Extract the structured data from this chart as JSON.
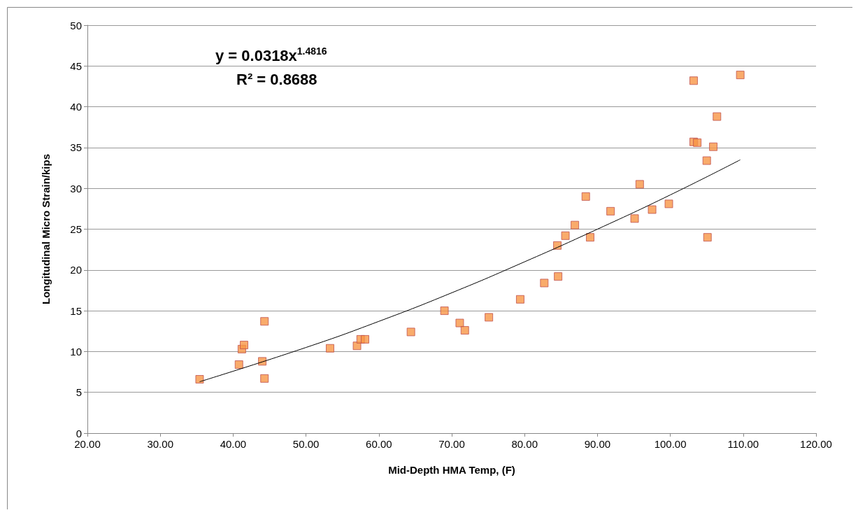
{
  "chart_data": {
    "type": "scatter",
    "xlabel": "Mid-Depth HMA Temp, (F)",
    "ylabel": "Longitudinal Micro Strain/kips",
    "annotations": [
      "y = 0.0318x$^{1.4816}$",
      "R² = 0.8688"
    ],
    "xlim": [
      20,
      120
    ],
    "xticks": [
      {
        "value": 20,
        "label": "20.00"
      },
      {
        "value": 30,
        "label": "30.00"
      },
      {
        "value": 40,
        "label": "40.00"
      },
      {
        "value": 50,
        "label": "50.00"
      },
      {
        "value": 60,
        "label": "60.00"
      },
      {
        "value": 70,
        "label": "70.00"
      },
      {
        "value": 80,
        "label": "80.00"
      },
      {
        "value": 90,
        "label": "90.00"
      },
      {
        "value": 100,
        "label": "100.00"
      },
      {
        "value": 110,
        "label": "110.00"
      },
      {
        "value": 120,
        "label": "120.00"
      }
    ],
    "ylim": [
      0,
      50
    ],
    "yticks": [
      0,
      5,
      10,
      15,
      20,
      25,
      30,
      35,
      40,
      45,
      50
    ],
    "grid": "y",
    "series": [
      {
        "color": "#f79646",
        "marker": "square",
        "x": [
          35.4,
          40.8,
          41.2,
          41.5,
          44.0,
          44.3,
          44.3,
          53.3,
          57.0,
          57.5,
          58.1,
          64.4,
          69.0,
          71.1,
          71.8,
          75.1,
          79.4,
          82.7,
          84.5,
          84.6,
          85.6,
          86.9,
          88.4,
          89.0,
          91.8,
          95.1,
          95.8,
          97.5,
          99.8,
          103.2,
          103.2,
          103.7,
          105.0,
          105.1,
          105.9,
          106.4,
          109.6
        ],
        "values": [
          6.6,
          8.4,
          10.3,
          10.8,
          8.8,
          13.7,
          6.7,
          10.4,
          10.7,
          11.5,
          11.5,
          12.4,
          15.0,
          13.5,
          12.6,
          14.2,
          16.4,
          18.4,
          23.0,
          19.2,
          24.2,
          25.5,
          29.0,
          24.0,
          27.2,
          26.3,
          30.5,
          27.4,
          28.1,
          43.2,
          35.7,
          35.6,
          33.4,
          24.0,
          35.1,
          38.8,
          43.9
        ]
      },
      {
        "type": "line",
        "color": "#000000",
        "marker": "none",
        "line_style": "solid",
        "x": [
          35.4,
          50,
          60,
          70,
          80,
          90,
          100,
          109.6
        ],
        "values": [
          6.3,
          10.5,
          13.7,
          17.2,
          21.0,
          25.0,
          29.2,
          33.5
        ]
      }
    ]
  }
}
